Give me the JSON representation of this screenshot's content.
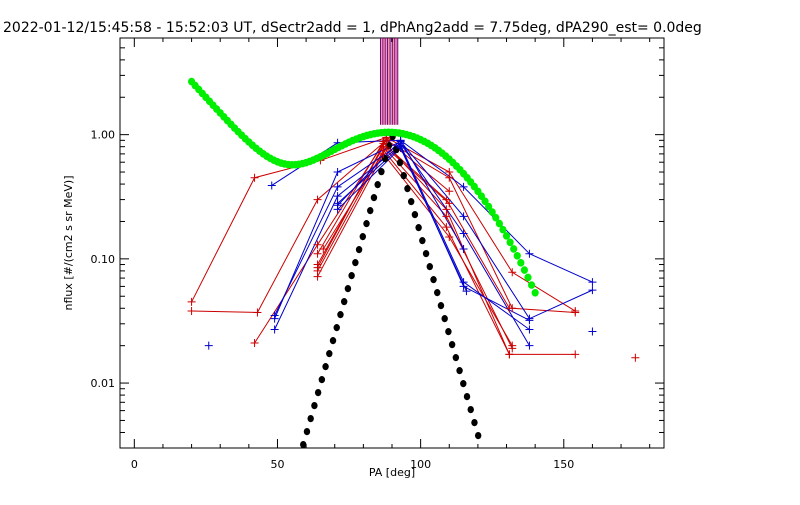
{
  "window": {
    "title": "2022-01-12/15:45:58 - 15:52:03 UT, dSectr2add = 1, dPhAng2add = 7.75deg, dPA290_est=   0.0deg"
  },
  "chart_data": {
    "type": "scatter",
    "title": "2022-01-12/15:45:58 - 15:52:03 UT, dSectr2add = 1, dPhAng2add = 7.75deg, dPA290_est=   0.0deg",
    "xlabel": "PA [deg]",
    "ylabel": "nflux [#/(cm2 s sr MeV)]",
    "xlim": [
      -5,
      185
    ],
    "ylim": [
      0.003,
      6
    ],
    "yscale": "log",
    "grid": false,
    "x_ticks": [
      {
        "value": 0,
        "label": "0"
      },
      {
        "value": 50,
        "label": "50"
      },
      {
        "value": 100,
        "label": "100"
      },
      {
        "value": 150,
        "label": "150"
      }
    ],
    "y_ticks": [
      {
        "value": 1.0,
        "label": "1.00"
      },
      {
        "value": 0.1,
        "label": "0.10"
      },
      {
        "value": 0.01,
        "label": "0.01"
      }
    ],
    "colors": {
      "red": "#cc0000",
      "blue": "#0000cc",
      "green": "#00ee00",
      "black": "#000000",
      "vline_a": "#800080",
      "vline_b": "#b01050"
    },
    "vertical_lines": [
      86,
      86.6,
      87.2,
      87.8,
      88.4,
      89.0,
      89.6,
      90.2,
      90.8,
      91.4,
      92.0
    ],
    "vertical_lines_ylim": [
      1.2,
      6
    ],
    "black_curve": {
      "center": 90,
      "decay_per_deg": 0.0805,
      "x_range": [
        20,
        150
      ],
      "step": 1.3
    },
    "green_curve": {
      "center": 90,
      "width_deg": 20.5,
      "baseline": 0.043,
      "baseline_decay": 0.059,
      "x_range": [
        20,
        140
      ],
      "step": 1.25
    },
    "red_series": [
      {
        "x": [
          20,
          42,
          65,
          88,
          110,
          132,
          154
        ],
        "y": [
          0.045,
          0.45,
          0.62,
          0.95,
          0.5,
          0.078,
          0.038
        ]
      },
      {
        "x": [
          20,
          43,
          64,
          88,
          110,
          132,
          154
        ],
        "y": [
          0.038,
          0.037,
          0.3,
          0.9,
          0.45,
          0.04,
          0.037
        ]
      },
      {
        "x": [
          42,
          64,
          87,
          109,
          131
        ],
        "y": [
          0.021,
          0.13,
          0.85,
          0.3,
          0.04
        ]
      },
      {
        "x": [
          64,
          87,
          109,
          131,
          154
        ],
        "y": [
          0.11,
          0.88,
          0.25,
          0.017,
          0.017
        ]
      },
      {
        "x": [
          64,
          87,
          109,
          132
        ],
        "y": [
          0.09,
          0.8,
          0.22,
          0.019
        ]
      },
      {
        "x": [
          64,
          87,
          109,
          131
        ],
        "y": [
          0.08,
          0.75,
          0.18,
          0.017
        ]
      },
      {
        "x": [
          64,
          87,
          110,
          132
        ],
        "y": [
          0.072,
          0.7,
          0.15,
          0.02
        ]
      },
      {
        "x": [
          64,
          88,
          110
        ],
        "y": [
          0.085,
          0.92,
          0.35
        ]
      },
      {
        "x": [
          66,
          88,
          110
        ],
        "y": [
          0.12,
          0.78,
          0.28
        ]
      },
      {
        "x": [
          175
        ],
        "y": [
          0.016
        ]
      }
    ],
    "blue_series": [
      {
        "x": [
          48,
          71,
          93,
          115,
          138,
          160
        ],
        "y": [
          0.39,
          0.86,
          0.9,
          0.38,
          0.11,
          0.065
        ]
      },
      {
        "x": [
          49,
          71,
          93,
          115,
          138,
          160
        ],
        "y": [
          0.033,
          0.5,
          0.88,
          0.22,
          0.033,
          0.056
        ]
      },
      {
        "x": [
          49,
          71,
          93,
          115,
          138
        ],
        "y": [
          0.035,
          0.38,
          0.85,
          0.16,
          0.02
        ]
      },
      {
        "x": [
          49,
          71,
          93,
          115,
          138
        ],
        "y": [
          0.027,
          0.32,
          0.82,
          0.065,
          0.027
        ]
      },
      {
        "x": [
          71,
          93,
          115,
          138
        ],
        "y": [
          0.28,
          0.8,
          0.06,
          0.032
        ]
      },
      {
        "x": [
          71,
          93,
          116
        ],
        "y": [
          0.25,
          0.78,
          0.055
        ]
      },
      {
        "x": [
          71,
          93,
          115
        ],
        "y": [
          0.27,
          0.9,
          0.12
        ]
      },
      {
        "x": [
          26
        ],
        "y": [
          0.02
        ]
      },
      {
        "x": [
          160
        ],
        "y": [
          0.026
        ]
      }
    ]
  }
}
